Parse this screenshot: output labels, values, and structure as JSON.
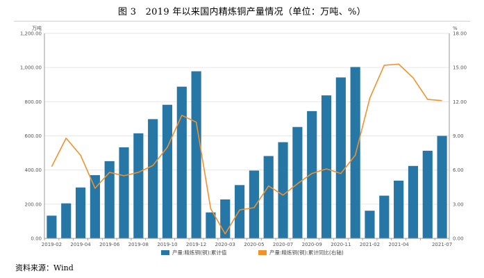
{
  "figure": {
    "title": "图 3　2019 年以来国内精炼铜产量情况（单位：万吨、%）",
    "source": "资料来源：Wind"
  },
  "colors": {
    "bar": "#2676a6",
    "line": "#f0922c",
    "grid": "#e6e6e6",
    "axis": "#999999"
  },
  "chart_data": {
    "type": "bar",
    "title": "",
    "xlabel": "",
    "ylabel": "万吨",
    "y2label": "%",
    "ylim": [
      0,
      1200
    ],
    "y2lim": [
      0,
      18
    ],
    "yticks": [
      "0.00",
      "200.00",
      "400.00",
      "600.00",
      "800.00",
      "1,000.00",
      "1,200.00"
    ],
    "y2ticks": [
      "0.00",
      "3.00",
      "6.00",
      "9.00",
      "12.00",
      "15.00",
      "18.00"
    ],
    "grid": true,
    "legend_position": "bottom",
    "categories": [
      "2019-02",
      "2019-03",
      "2019-04",
      "2019-05",
      "2019-06",
      "2019-07",
      "2019-08",
      "2019-09",
      "2019-10",
      "2019-11",
      "2019-12",
      "2020-02",
      "2020-03",
      "2020-04",
      "2020-05",
      "2020-06",
      "2020-07",
      "2020-08",
      "2020-09",
      "2020-10",
      "2020-11",
      "2020-12",
      "2021-02",
      "2021-03",
      "2021-04",
      "2021-05",
      "2021-06",
      "2021-07"
    ],
    "xtick_labels": [
      "2019-02",
      "2019-04",
      "2019-06",
      "2019-08",
      "2019-10",
      "2019-12",
      "2020-03",
      "2020-05",
      "2020-07",
      "2020-09",
      "2020-11",
      "2021-02",
      "2021-04",
      "2021-07"
    ],
    "series": [
      {
        "name": "产量:精炼铜(铜):累计值",
        "type": "bar",
        "axis": "left",
        "values": [
          133,
          205,
          298,
          370,
          452,
          533,
          615,
          698,
          782,
          888,
          978,
          152,
          228,
          312,
          397,
          482,
          563,
          652,
          745,
          837,
          942,
          1003,
          162,
          250,
          338,
          424,
          513,
          600
        ]
      },
      {
        "name": "产量:精炼铜(铜):累计同比(右轴)",
        "type": "line",
        "axis": "right",
        "values": [
          6.3,
          8.8,
          7.3,
          4.4,
          5.8,
          5.5,
          5.8,
          6.4,
          8.0,
          10.8,
          10.2,
          2.6,
          0.4,
          2.5,
          2.7,
          4.6,
          3.8,
          4.8,
          5.7,
          6.1,
          5.7,
          7.3,
          12.3,
          15.2,
          15.3,
          14.1,
          12.2,
          12.1
        ]
      }
    ]
  }
}
